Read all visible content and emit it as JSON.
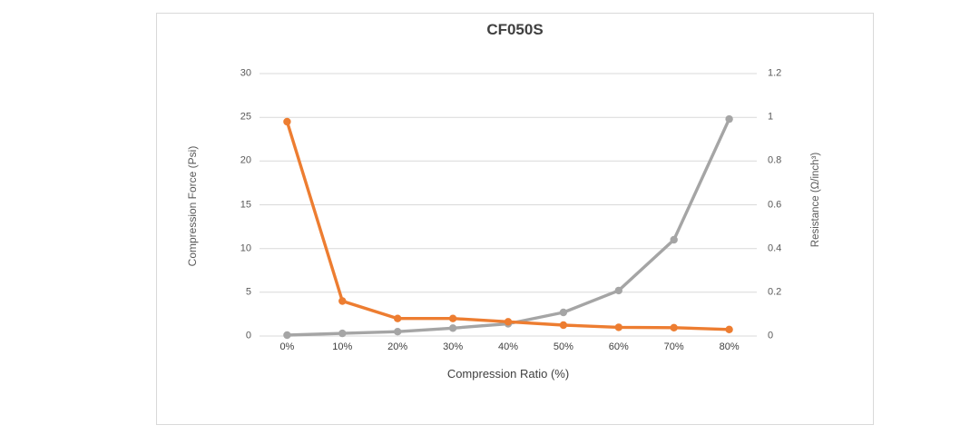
{
  "window": {
    "background": "#ffffff",
    "panel_border_color": "#d9d9d9"
  },
  "chart_data": {
    "type": "line",
    "title": "CF050S",
    "categories": [
      "0%",
      "10%",
      "20%",
      "30%",
      "40%",
      "50%",
      "60%",
      "70%",
      "80%"
    ],
    "series": [
      {
        "name": "Compression Force",
        "yaxis": "left",
        "color": "#a5a5a5",
        "marker": "circle",
        "values": [
          0.1,
          0.3,
          0.5,
          0.9,
          1.4,
          2.7,
          5.2,
          11,
          24.8
        ]
      },
      {
        "name": "Resistance",
        "yaxis": "right",
        "color": "#ed7d31",
        "marker": "circle",
        "values": [
          0.98,
          0.16,
          0.08,
          0.08,
          0.065,
          0.05,
          0.04,
          0.038,
          0.03
        ]
      }
    ],
    "x_axis": {
      "label": "Compression Ratio (%)"
    },
    "left_axis": {
      "label": "Compression Force (Psi)",
      "range": [
        0,
        30
      ],
      "ticks": [
        "0",
        "5",
        "10",
        "15",
        "20",
        "25",
        "30"
      ],
      "tick_values": [
        0,
        5,
        10,
        15,
        20,
        25,
        30
      ]
    },
    "right_axis": {
      "label": "Resistance (Ω/inch³)",
      "range": [
        0,
        1.2
      ],
      "ticks": [
        "0",
        "0.2",
        "0.4",
        "0.6",
        "0.8",
        "1",
        "1.2"
      ],
      "tick_values": [
        0,
        0.2,
        0.4,
        0.6,
        0.8,
        1,
        1.2
      ]
    },
    "grid": true,
    "grid_color": "#d9d9d9",
    "legend": false,
    "line_width": 3.4,
    "marker_radius": 4.2
  }
}
